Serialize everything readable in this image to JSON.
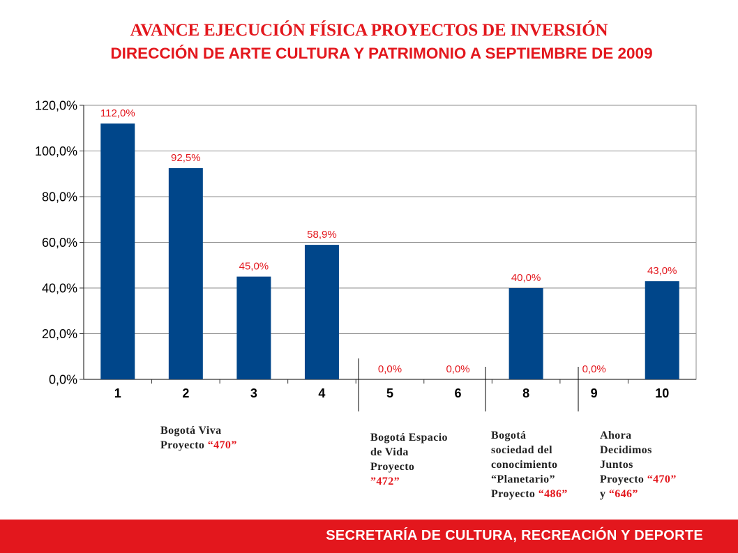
{
  "header": {
    "title": "AVANCE EJECUCIÓN FÍSICA PROYECTOS DE INVERSIÓN",
    "subtitle": "DIRECCIÓN DE ARTE CULTURA Y PATRIMONIO A SEPTIEMBRE DE 2009"
  },
  "chart_data": {
    "type": "bar",
    "categories": [
      "1",
      "2",
      "3",
      "4",
      "5",
      "6",
      "8",
      "9",
      "10"
    ],
    "values": [
      112.0,
      92.5,
      45.0,
      58.9,
      0.0,
      0.0,
      40.0,
      0.0,
      43.0
    ],
    "data_labels": [
      "112,0%",
      "92,5%",
      "45,0%",
      "58,9%",
      "0,0%",
      "0,0%",
      "40,0%",
      "0,0%",
      "43,0%"
    ],
    "ylim": [
      0,
      120
    ],
    "yticks": [
      "0,0%",
      "20,0%",
      "40,0%",
      "60,0%",
      "80,0%",
      "100,0%",
      "120,0%"
    ],
    "grid": true,
    "bar_color": "#00468a",
    "label_color": "#e3171d"
  },
  "groups": [
    {
      "lines": [
        [
          "Bogotá Viva"
        ],
        [
          "Proyecto ",
          "“470”"
        ]
      ]
    },
    {
      "lines": [
        [
          "Bogotá Espacio"
        ],
        [
          "de Vida"
        ],
        [
          "Proyecto"
        ],
        [
          "”472”"
        ]
      ]
    },
    {
      "lines": [
        [
          "Bogotá"
        ],
        [
          "sociedad del"
        ],
        [
          "conocimiento"
        ],
        [
          "“Planetario”"
        ],
        [
          "Proyecto ",
          "“486”"
        ]
      ]
    },
    {
      "lines": [
        [
          "Ahora"
        ],
        [
          "Decidimos"
        ],
        [
          "Juntos"
        ],
        [
          "Proyecto ",
          "“470”"
        ],
        [
          "y ",
          "“646”"
        ]
      ]
    }
  ],
  "footer": {
    "text": "SECRETARÍA DE CULTURA, RECREACIÓN Y DEPORTE"
  }
}
